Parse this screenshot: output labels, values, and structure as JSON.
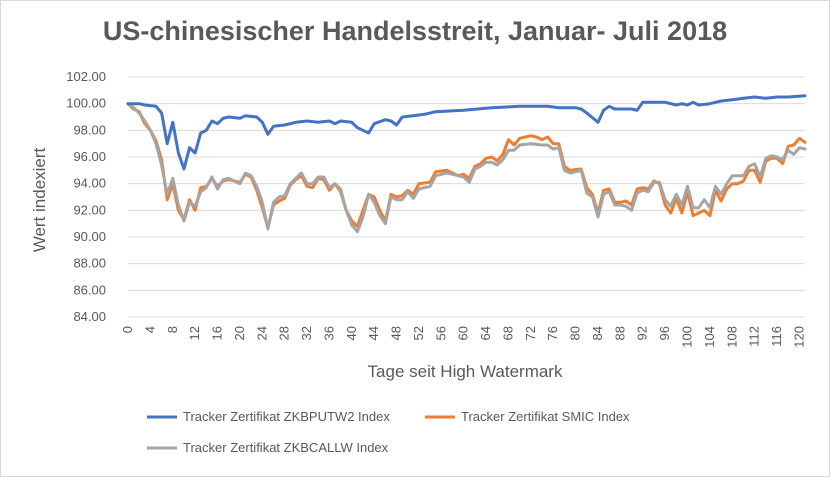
{
  "chart_data": {
    "type": "line",
    "title": "US-chinesischer Handelsstreit, Januar- Juli 2018",
    "xlabel": "Tage seit High Watermark",
    "ylabel": "Wert indexiert",
    "ylim": [
      84,
      102
    ],
    "xlim": [
      0,
      121
    ],
    "yticks": [
      "84.00",
      "86.00",
      "88.00",
      "90.00",
      "92.00",
      "94.00",
      "96.00",
      "98.00",
      "100.00",
      "102.00"
    ],
    "xticks": [
      "0",
      "4",
      "8",
      "12",
      "16",
      "20",
      "24",
      "28",
      "32",
      "36",
      "40",
      "44",
      "48",
      "52",
      "56",
      "60",
      "64",
      "68",
      "72",
      "76",
      "80",
      "84",
      "88",
      "92",
      "96",
      "100",
      "104",
      "108",
      "112",
      "116",
      "120"
    ],
    "grid": true,
    "legend_position": "bottom",
    "series": [
      {
        "name": "Tracker Zertifikat ZKBPUTW2 Index",
        "color": "#4472c4",
        "points": [
          [
            0,
            100.0
          ],
          [
            2,
            100.0
          ],
          [
            3,
            99.9
          ],
          [
            5,
            99.8
          ],
          [
            6,
            99.3
          ],
          [
            7,
            97.0
          ],
          [
            8,
            98.6
          ],
          [
            9,
            96.3
          ],
          [
            10,
            95.1
          ],
          [
            11,
            96.7
          ],
          [
            12,
            96.3
          ],
          [
            13,
            97.8
          ],
          [
            14,
            98.0
          ],
          [
            15,
            98.7
          ],
          [
            16,
            98.5
          ],
          [
            17,
            98.9
          ],
          [
            18,
            99.0
          ],
          [
            20,
            98.9
          ],
          [
            21,
            99.1
          ],
          [
            23,
            99.0
          ],
          [
            24,
            98.6
          ],
          [
            25,
            97.7
          ],
          [
            26,
            98.3
          ],
          [
            28,
            98.4
          ],
          [
            30,
            98.6
          ],
          [
            32,
            98.7
          ],
          [
            34,
            98.6
          ],
          [
            36,
            98.7
          ],
          [
            37,
            98.5
          ],
          [
            38,
            98.7
          ],
          [
            40,
            98.6
          ],
          [
            41,
            98.2
          ],
          [
            42,
            98.0
          ],
          [
            43,
            97.8
          ],
          [
            44,
            98.5
          ],
          [
            46,
            98.8
          ],
          [
            47,
            98.7
          ],
          [
            48,
            98.4
          ],
          [
            49,
            99.0
          ],
          [
            51,
            99.1
          ],
          [
            53,
            99.2
          ],
          [
            55,
            99.4
          ],
          [
            60,
            99.5
          ],
          [
            65,
            99.7
          ],
          [
            70,
            99.8
          ],
          [
            75,
            99.8
          ],
          [
            77,
            99.7
          ],
          [
            80,
            99.7
          ],
          [
            81,
            99.6
          ],
          [
            82,
            99.3
          ],
          [
            84,
            98.6
          ],
          [
            85,
            99.5
          ],
          [
            86,
            99.8
          ],
          [
            87,
            99.6
          ],
          [
            90,
            99.6
          ],
          [
            91,
            99.5
          ],
          [
            92,
            100.1
          ],
          [
            94,
            100.1
          ],
          [
            96,
            100.1
          ],
          [
            98,
            99.9
          ],
          [
            99,
            100.0
          ],
          [
            100,
            99.9
          ],
          [
            101,
            100.1
          ],
          [
            102,
            99.9
          ],
          [
            104,
            100.0
          ],
          [
            105,
            100.1
          ],
          [
            106,
            100.2
          ],
          [
            108,
            100.3
          ],
          [
            110,
            100.4
          ],
          [
            112,
            100.5
          ],
          [
            114,
            100.4
          ],
          [
            116,
            100.5
          ],
          [
            118,
            100.5
          ],
          [
            121,
            100.6
          ]
        ]
      },
      {
        "name": "Tracker Zertifikat SMIC Index",
        "color": "#ed7d31",
        "points": [
          [
            0,
            100.0
          ],
          [
            1,
            99.6
          ],
          [
            2,
            99.4
          ],
          [
            3,
            98.5
          ],
          [
            4,
            98.0
          ],
          [
            5,
            97.2
          ],
          [
            6,
            95.8
          ],
          [
            7,
            92.8
          ],
          [
            8,
            94.0
          ],
          [
            9,
            92.0
          ],
          [
            10,
            91.3
          ],
          [
            11,
            92.8
          ],
          [
            12,
            92.0
          ],
          [
            13,
            93.7
          ],
          [
            14,
            93.8
          ],
          [
            15,
            94.4
          ],
          [
            16,
            93.8
          ],
          [
            17,
            94.2
          ],
          [
            18,
            94.3
          ],
          [
            20,
            94.1
          ],
          [
            21,
            94.7
          ],
          [
            22,
            94.5
          ],
          [
            23,
            93.5
          ],
          [
            24,
            92.2
          ],
          [
            25,
            90.7
          ],
          [
            26,
            92.4
          ],
          [
            27,
            92.7
          ],
          [
            28,
            92.9
          ],
          [
            29,
            93.9
          ],
          [
            30,
            94.3
          ],
          [
            31,
            94.6
          ],
          [
            32,
            93.8
          ],
          [
            33,
            93.7
          ],
          [
            34,
            94.4
          ],
          [
            35,
            94.3
          ],
          [
            36,
            93.5
          ],
          [
            37,
            94.0
          ],
          [
            38,
            93.4
          ],
          [
            39,
            92.0
          ],
          [
            40,
            91.2
          ],
          [
            41,
            90.8
          ],
          [
            42,
            92.0
          ],
          [
            43,
            93.2
          ],
          [
            44,
            93.0
          ],
          [
            45,
            92.0
          ],
          [
            46,
            91.2
          ],
          [
            47,
            93.2
          ],
          [
            48,
            93.0
          ],
          [
            49,
            93.1
          ],
          [
            50,
            93.5
          ],
          [
            51,
            93.2
          ],
          [
            52,
            94.0
          ],
          [
            54,
            94.1
          ],
          [
            55,
            94.9
          ],
          [
            57,
            95.0
          ],
          [
            58,
            94.8
          ],
          [
            59,
            94.6
          ],
          [
            60,
            94.7
          ],
          [
            61,
            94.4
          ],
          [
            62,
            95.3
          ],
          [
            63,
            95.5
          ],
          [
            64,
            95.9
          ],
          [
            65,
            96.0
          ],
          [
            66,
            95.7
          ],
          [
            67,
            96.2
          ],
          [
            68,
            97.3
          ],
          [
            69,
            96.9
          ],
          [
            70,
            97.4
          ],
          [
            72,
            97.6
          ],
          [
            73,
            97.5
          ],
          [
            74,
            97.3
          ],
          [
            75,
            97.5
          ],
          [
            76,
            97.0
          ],
          [
            77,
            97.0
          ],
          [
            78,
            95.3
          ],
          [
            79,
            95.0
          ],
          [
            81,
            95.1
          ],
          [
            82,
            93.7
          ],
          [
            83,
            93.2
          ],
          [
            84,
            91.8
          ],
          [
            85,
            93.5
          ],
          [
            86,
            93.6
          ],
          [
            87,
            92.6
          ],
          [
            88,
            92.6
          ],
          [
            89,
            92.7
          ],
          [
            90,
            92.4
          ],
          [
            91,
            93.6
          ],
          [
            92,
            93.7
          ],
          [
            93,
            93.6
          ],
          [
            94,
            94.2
          ],
          [
            95,
            94.0
          ],
          [
            96,
            92.4
          ],
          [
            97,
            91.8
          ],
          [
            98,
            92.9
          ],
          [
            99,
            91.8
          ],
          [
            100,
            93.4
          ],
          [
            101,
            91.6
          ],
          [
            102,
            91.8
          ],
          [
            103,
            92.0
          ],
          [
            104,
            91.6
          ],
          [
            105,
            93.5
          ],
          [
            106,
            92.7
          ],
          [
            107,
            93.6
          ],
          [
            108,
            94.0
          ],
          [
            109,
            94.0
          ],
          [
            110,
            94.2
          ],
          [
            111,
            95.0
          ],
          [
            112,
            95.0
          ],
          [
            113,
            94.1
          ],
          [
            114,
            95.7
          ],
          [
            115,
            95.9
          ],
          [
            116,
            95.9
          ],
          [
            117,
            95.5
          ],
          [
            118,
            96.8
          ],
          [
            119,
            96.9
          ],
          [
            120,
            97.4
          ],
          [
            121,
            97.1
          ]
        ]
      },
      {
        "name": "Tracker Zertifikat ZKBCALLW Index",
        "color": "#a5a5a5",
        "points": [
          [
            0,
            100.0
          ],
          [
            1,
            99.7
          ],
          [
            2,
            99.3
          ],
          [
            3,
            98.7
          ],
          [
            4,
            98.0
          ],
          [
            5,
            97.0
          ],
          [
            6,
            95.4
          ],
          [
            7,
            93.2
          ],
          [
            8,
            94.4
          ],
          [
            9,
            92.4
          ],
          [
            10,
            91.2
          ],
          [
            11,
            92.6
          ],
          [
            12,
            92.3
          ],
          [
            13,
            93.4
          ],
          [
            14,
            93.7
          ],
          [
            15,
            94.5
          ],
          [
            16,
            93.6
          ],
          [
            17,
            94.3
          ],
          [
            18,
            94.4
          ],
          [
            20,
            94.0
          ],
          [
            21,
            94.8
          ],
          [
            22,
            94.6
          ],
          [
            23,
            93.8
          ],
          [
            24,
            92.6
          ],
          [
            25,
            90.6
          ],
          [
            26,
            92.6
          ],
          [
            27,
            93.0
          ],
          [
            28,
            93.1
          ],
          [
            29,
            94.0
          ],
          [
            30,
            94.4
          ],
          [
            31,
            94.8
          ],
          [
            32,
            94.0
          ],
          [
            33,
            94.0
          ],
          [
            34,
            94.5
          ],
          [
            35,
            94.5
          ],
          [
            36,
            93.7
          ],
          [
            37,
            94.0
          ],
          [
            38,
            93.6
          ],
          [
            39,
            92.0
          ],
          [
            40,
            90.9
          ],
          [
            41,
            90.4
          ],
          [
            42,
            91.5
          ],
          [
            43,
            93.2
          ],
          [
            44,
            92.6
          ],
          [
            45,
            91.6
          ],
          [
            46,
            91.0
          ],
          [
            47,
            93.0
          ],
          [
            48,
            92.8
          ],
          [
            49,
            92.8
          ],
          [
            50,
            93.4
          ],
          [
            51,
            92.9
          ],
          [
            52,
            93.6
          ],
          [
            54,
            93.8
          ],
          [
            55,
            94.6
          ],
          [
            57,
            94.8
          ],
          [
            58,
            94.7
          ],
          [
            59,
            94.6
          ],
          [
            60,
            94.5
          ],
          [
            61,
            94.1
          ],
          [
            62,
            95.1
          ],
          [
            63,
            95.3
          ],
          [
            64,
            95.6
          ],
          [
            65,
            95.6
          ],
          [
            66,
            95.4
          ],
          [
            67,
            95.8
          ],
          [
            68,
            96.5
          ],
          [
            69,
            96.5
          ],
          [
            70,
            96.9
          ],
          [
            72,
            97.0
          ],
          [
            74,
            96.9
          ],
          [
            75,
            96.9
          ],
          [
            76,
            96.6
          ],
          [
            77,
            96.7
          ],
          [
            78,
            95.0
          ],
          [
            79,
            94.8
          ],
          [
            81,
            95.0
          ],
          [
            82,
            93.3
          ],
          [
            83,
            93.0
          ],
          [
            84,
            91.5
          ],
          [
            85,
            93.2
          ],
          [
            86,
            93.4
          ],
          [
            87,
            92.4
          ],
          [
            88,
            92.4
          ],
          [
            89,
            92.3
          ],
          [
            90,
            92.0
          ],
          [
            91,
            93.3
          ],
          [
            92,
            93.5
          ],
          [
            93,
            93.4
          ],
          [
            94,
            94.1
          ],
          [
            95,
            94.1
          ],
          [
            96,
            92.8
          ],
          [
            97,
            92.3
          ],
          [
            98,
            93.2
          ],
          [
            99,
            92.4
          ],
          [
            100,
            93.8
          ],
          [
            101,
            92.2
          ],
          [
            102,
            92.2
          ],
          [
            103,
            92.8
          ],
          [
            104,
            92.2
          ],
          [
            105,
            93.8
          ],
          [
            106,
            93.2
          ],
          [
            107,
            94.0
          ],
          [
            108,
            94.6
          ],
          [
            109,
            94.6
          ],
          [
            110,
            94.6
          ],
          [
            111,
            95.3
          ],
          [
            112,
            95.5
          ],
          [
            113,
            94.5
          ],
          [
            114,
            95.9
          ],
          [
            115,
            96.1
          ],
          [
            116,
            96.0
          ],
          [
            117,
            95.8
          ],
          [
            118,
            96.5
          ],
          [
            119,
            96.2
          ],
          [
            120,
            96.7
          ],
          [
            121,
            96.6
          ]
        ]
      }
    ]
  }
}
